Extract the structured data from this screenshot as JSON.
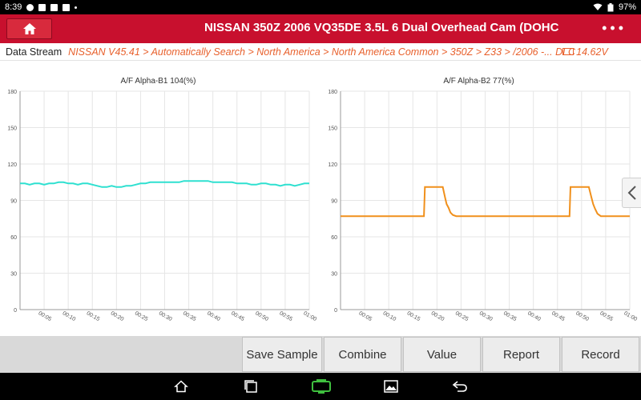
{
  "status": {
    "time": "8:39",
    "battery": "97%"
  },
  "header": {
    "title": "NISSAN  350Z   2006 VQ35DE 3.5L 6 Dual Overhead Cam (DOHC"
  },
  "breadcrumb": {
    "label": "Data Stream",
    "path": "NISSAN V45.41 > Automatically Search > North America > North America Common > 350Z > Z33 > /2006 -...   DLC",
    "voltage": "14.62V"
  },
  "toolbar": {
    "save_sample": "Save Sample",
    "combine": "Combine",
    "value": "Value",
    "report": "Report",
    "record": "Record"
  },
  "colors": {
    "header": "#c8102e",
    "accent": "#e8602c",
    "series1": "#2ee0d0",
    "series2": "#f0901c"
  },
  "chart_data": [
    {
      "type": "line",
      "title": "A/F Alpha-B1 104(%)",
      "ylim": [
        0,
        180
      ],
      "yticks": [
        "0",
        "30",
        "60",
        "90",
        "120",
        "150",
        "180"
      ],
      "xticks": [
        "00:05",
        "00:10",
        "00:15",
        "00:20",
        "00:25",
        "00:30",
        "00:35",
        "00:40",
        "00:45",
        "00:50",
        "00:55",
        "01:00"
      ],
      "xlim": [
        0,
        60
      ],
      "grid": true,
      "series": [
        {
          "name": "",
          "color": "#2ee0d0",
          "x": [
            0,
            1,
            2,
            3,
            4,
            5,
            6,
            7,
            8,
            9,
            10,
            11,
            12,
            13,
            14,
            15,
            16,
            17,
            18,
            19,
            20,
            21,
            22,
            23,
            24,
            25,
            26,
            27,
            28,
            29,
            30,
            31,
            32,
            33,
            34,
            35,
            36,
            37,
            38,
            39,
            40,
            41,
            42,
            43,
            44,
            45,
            46,
            47,
            48,
            49,
            50,
            51,
            52,
            53,
            54,
            55,
            56,
            57,
            58,
            59,
            60
          ],
          "y": [
            104,
            104,
            103,
            104,
            104,
            103,
            104,
            104,
            105,
            105,
            104,
            104,
            103,
            104,
            104,
            103,
            102,
            101,
            101,
            102,
            101,
            101,
            102,
            102,
            103,
            104,
            104,
            105,
            105,
            105,
            105,
            105,
            105,
            105,
            106,
            106,
            106,
            106,
            106,
            106,
            105,
            105,
            105,
            105,
            105,
            104,
            104,
            104,
            103,
            103,
            104,
            104,
            103,
            103,
            102,
            103,
            103,
            102,
            103,
            104,
            104
          ]
        }
      ]
    },
    {
      "type": "line",
      "title": "A/F Alpha-B2 77(%)",
      "ylim": [
        0,
        180
      ],
      "yticks": [
        "0",
        "30",
        "60",
        "90",
        "120",
        "150",
        "180"
      ],
      "xticks": [
        "00:05",
        "00:10",
        "00:15",
        "00:20",
        "00:25",
        "00:30",
        "00:35",
        "00:40",
        "00:45",
        "00:50",
        "00:55",
        "01:00"
      ],
      "xlim": [
        0,
        60
      ],
      "grid": true,
      "series": [
        {
          "name": "",
          "color": "#f0901c",
          "x": [
            0,
            17.3,
            17.5,
            21.2,
            21.7,
            22.0,
            22.4,
            22.8,
            23.3,
            24.0,
            47.5,
            47.7,
            51.5,
            52.0,
            52.4,
            52.8,
            53.3,
            54.0,
            60
          ],
          "y": [
            77,
            77,
            101,
            101,
            92,
            87,
            84,
            80,
            78,
            77,
            77,
            101,
            101,
            93,
            87,
            83,
            79,
            77,
            77
          ]
        }
      ]
    }
  ]
}
